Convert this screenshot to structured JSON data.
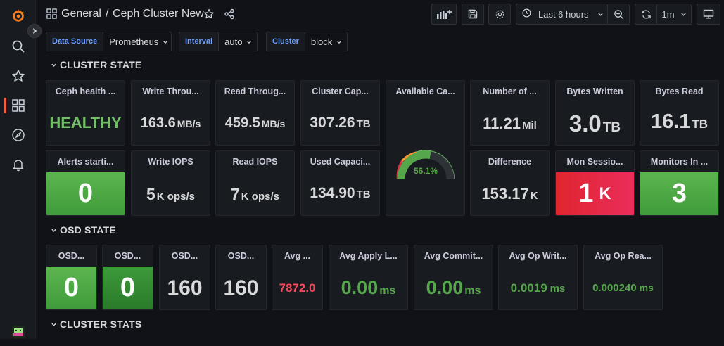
{
  "breadcrumb": {
    "folder": "General",
    "separator": "/",
    "dashboard": "Ceph Cluster New"
  },
  "toolbar": {
    "time_range": "Last 6 hours",
    "refresh": "1m"
  },
  "variables": [
    {
      "label": "Data Source",
      "value": "Prometheus"
    },
    {
      "label": "Interval",
      "value": "auto"
    },
    {
      "label": "Cluster",
      "value": "block"
    }
  ],
  "rows": {
    "cluster_state": "CLUSTER STATE",
    "osd_state": "OSD STATE",
    "cluster_stats": "CLUSTER STATS"
  },
  "panels": {
    "health": {
      "title": "Ceph health ...",
      "value": "HEALTHY"
    },
    "write_throughput": {
      "title": "Write Throu...",
      "value": "163.6",
      "unit": "MB/s"
    },
    "read_throughput": {
      "title": "Read Throug...",
      "value": "459.5",
      "unit": "MB/s"
    },
    "cluster_capacity": {
      "title": "Cluster Cap...",
      "value": "307.26",
      "unit": "TB"
    },
    "available_capacity": {
      "title": "Available Ca...",
      "value": "56.1%",
      "fraction": 0.561
    },
    "number_of": {
      "title": "Number of ...",
      "value": "11.21",
      "unit": "Mil"
    },
    "bytes_written": {
      "title": "Bytes Written",
      "value": "3.0",
      "unit": "TB"
    },
    "bytes_read": {
      "title": "Bytes Read",
      "value": "16.1",
      "unit": "TB"
    },
    "alerts": {
      "title": "Alerts starti...",
      "value": "0"
    },
    "write_iops": {
      "title": "Write IOPS",
      "value": "5",
      "unit": "K ops/s"
    },
    "read_iops": {
      "title": "Read IOPS",
      "value": "7",
      "unit": "K ops/s"
    },
    "used_capacity": {
      "title": "Used Capaci...",
      "value": "134.90",
      "unit": "TB"
    },
    "difference": {
      "title": "Difference",
      "value": "153.17",
      "unit": "K"
    },
    "mon_sessions": {
      "title": "Mon Sessio...",
      "value": "1",
      "unit": "K"
    },
    "monitors": {
      "title": "Monitors In ...",
      "value": "3"
    },
    "osd1": {
      "title": "OSD...",
      "value": "0"
    },
    "osd2": {
      "title": "OSD...",
      "value": "0"
    },
    "osd3": {
      "title": "OSD...",
      "value": "160"
    },
    "osd4": {
      "title": "OSD...",
      "value": "160"
    },
    "avg": {
      "title": "Avg ...",
      "value": "7872.0"
    },
    "avg_apply": {
      "title": "Avg Apply L...",
      "value": "0.00",
      "unit": "ms"
    },
    "avg_commit": {
      "title": "Avg Commit...",
      "value": "0.00",
      "unit": "ms"
    },
    "avg_op_write": {
      "title": "Avg Op Writ...",
      "value": "0.0019",
      "unit": "ms"
    },
    "avg_op_read": {
      "title": "Avg Op Rea...",
      "value": "0.000240",
      "unit": "ms"
    }
  },
  "colors": {
    "brand": "#f55f3e",
    "ok_green": "#73bf69",
    "ok_value": "#56a64b",
    "alert_red": "#e02f44",
    "warn_red": "#f2495c",
    "var_label": "#6e9fff"
  }
}
